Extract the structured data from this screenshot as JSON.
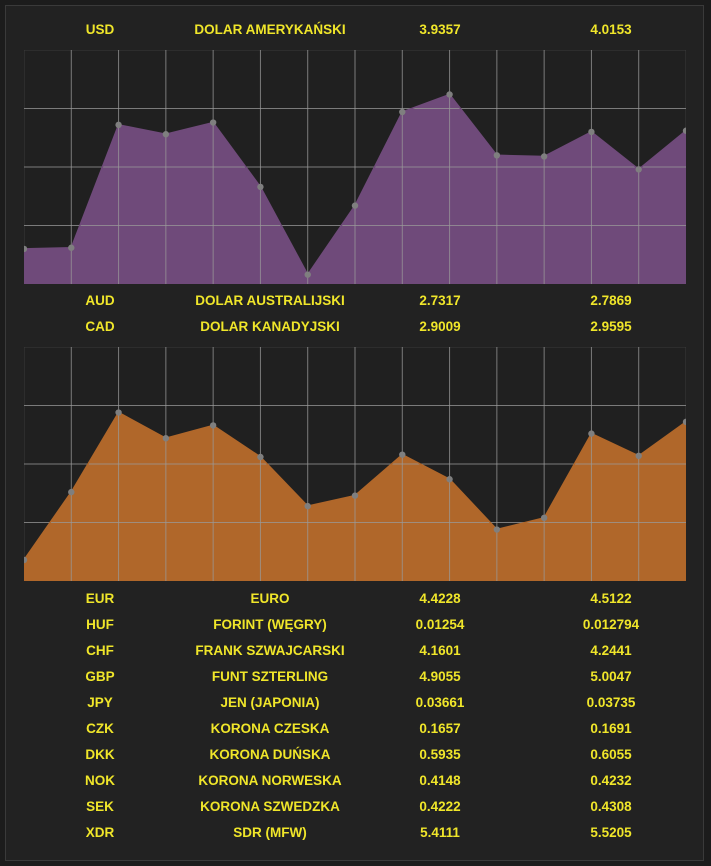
{
  "rows": {
    "usd": {
      "code": "USD",
      "name": "DOLAR AMERYKAŃSKI",
      "buy": "3.9357",
      "sell": "4.0153"
    },
    "aud": {
      "code": "AUD",
      "name": "DOLAR AUSTRALIJSKI",
      "buy": "2.7317",
      "sell": "2.7869"
    },
    "cad": {
      "code": "CAD",
      "name": "DOLAR KANADYJSKI",
      "buy": "2.9009",
      "sell": "2.9595"
    },
    "eur": {
      "code": "EUR",
      "name": "EURO",
      "buy": "4.4228",
      "sell": "4.5122"
    },
    "huf": {
      "code": "HUF",
      "name": "FORINT (WĘGRY)",
      "buy": "0.01254",
      "sell": "0.012794"
    },
    "chf": {
      "code": "CHF",
      "name": "FRANK SZWAJCARSKI",
      "buy": "4.1601",
      "sell": "4.2441"
    },
    "gbp": {
      "code": "GBP",
      "name": "FUNT SZTERLING",
      "buy": "4.9055",
      "sell": "5.0047"
    },
    "jpy": {
      "code": "JPY",
      "name": "JEN (JAPONIA)",
      "buy": "0.03661",
      "sell": "0.03735"
    },
    "czk": {
      "code": "CZK",
      "name": "KORONA CZESKA",
      "buy": "0.1657",
      "sell": "0.1691"
    },
    "dkk": {
      "code": "DKK",
      "name": "KORONA DUŃSKA",
      "buy": "0.5935",
      "sell": "0.6055"
    },
    "nok": {
      "code": "NOK",
      "name": "KORONA NORWESKA",
      "buy": "0.4148",
      "sell": "0.4232"
    },
    "sek": {
      "code": "SEK",
      "name": "KORONA SZWEDZKA",
      "buy": "0.4222",
      "sell": "0.4308"
    },
    "xdr": {
      "code": "XDR",
      "name": "SDR (MFW)",
      "buy": "5.4111",
      "sell": "5.5205"
    }
  },
  "colors": {
    "text": "#f0e62a",
    "chart_bg": "#202020",
    "grid": "#9a9a9a",
    "marker": "#7f7f7f",
    "series1_fill": "#6f4a7a",
    "series2_fill": "#b0672a"
  },
  "chart_data": [
    {
      "type": "area",
      "x": [
        0,
        1,
        2,
        3,
        4,
        5,
        6,
        7,
        8,
        9,
        10,
        11,
        12,
        13,
        14
      ],
      "ylim": [
        0,
        1
      ],
      "grid": true,
      "values": [
        0.15,
        0.155,
        0.68,
        0.64,
        0.69,
        0.415,
        0.04,
        0.335,
        0.735,
        0.81,
        0.55,
        0.545,
        0.65,
        0.49,
        0.655
      ],
      "color": "#6f4a7a"
    },
    {
      "type": "area",
      "x": [
        0,
        1,
        2,
        3,
        4,
        5,
        6,
        7,
        8,
        9,
        10,
        11,
        12,
        13,
        14
      ],
      "ylim": [
        0,
        1
      ],
      "grid": true,
      "values": [
        0.09,
        0.38,
        0.72,
        0.61,
        0.665,
        0.53,
        0.32,
        0.365,
        0.54,
        0.435,
        0.22,
        0.27,
        0.63,
        0.535,
        0.68
      ],
      "color": "#b0672a"
    }
  ]
}
